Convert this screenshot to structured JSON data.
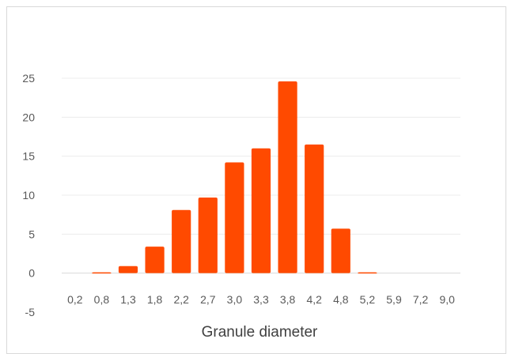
{
  "chart_data": {
    "type": "bar",
    "title": "",
    "xlabel": "Granule diameter",
    "ylabel": "",
    "ylim": [
      -5,
      25
    ],
    "yticks": [
      -5,
      0,
      5,
      10,
      15,
      20,
      25
    ],
    "grid": true,
    "legend": "none",
    "bar_color": "#ff4a00",
    "categories": [
      "0,2",
      "0,8",
      "1,3",
      "1,8",
      "2,2",
      "2,7",
      "3,0",
      "3,3",
      "3,8",
      "4,2",
      "4,8",
      "5,2",
      "5,9",
      "7,2",
      "9,0"
    ],
    "values": [
      0,
      0.1,
      0.9,
      3.4,
      8.1,
      9.7,
      14.2,
      16.0,
      24.6,
      16.5,
      5.7,
      0.1,
      0,
      0,
      0
    ]
  }
}
